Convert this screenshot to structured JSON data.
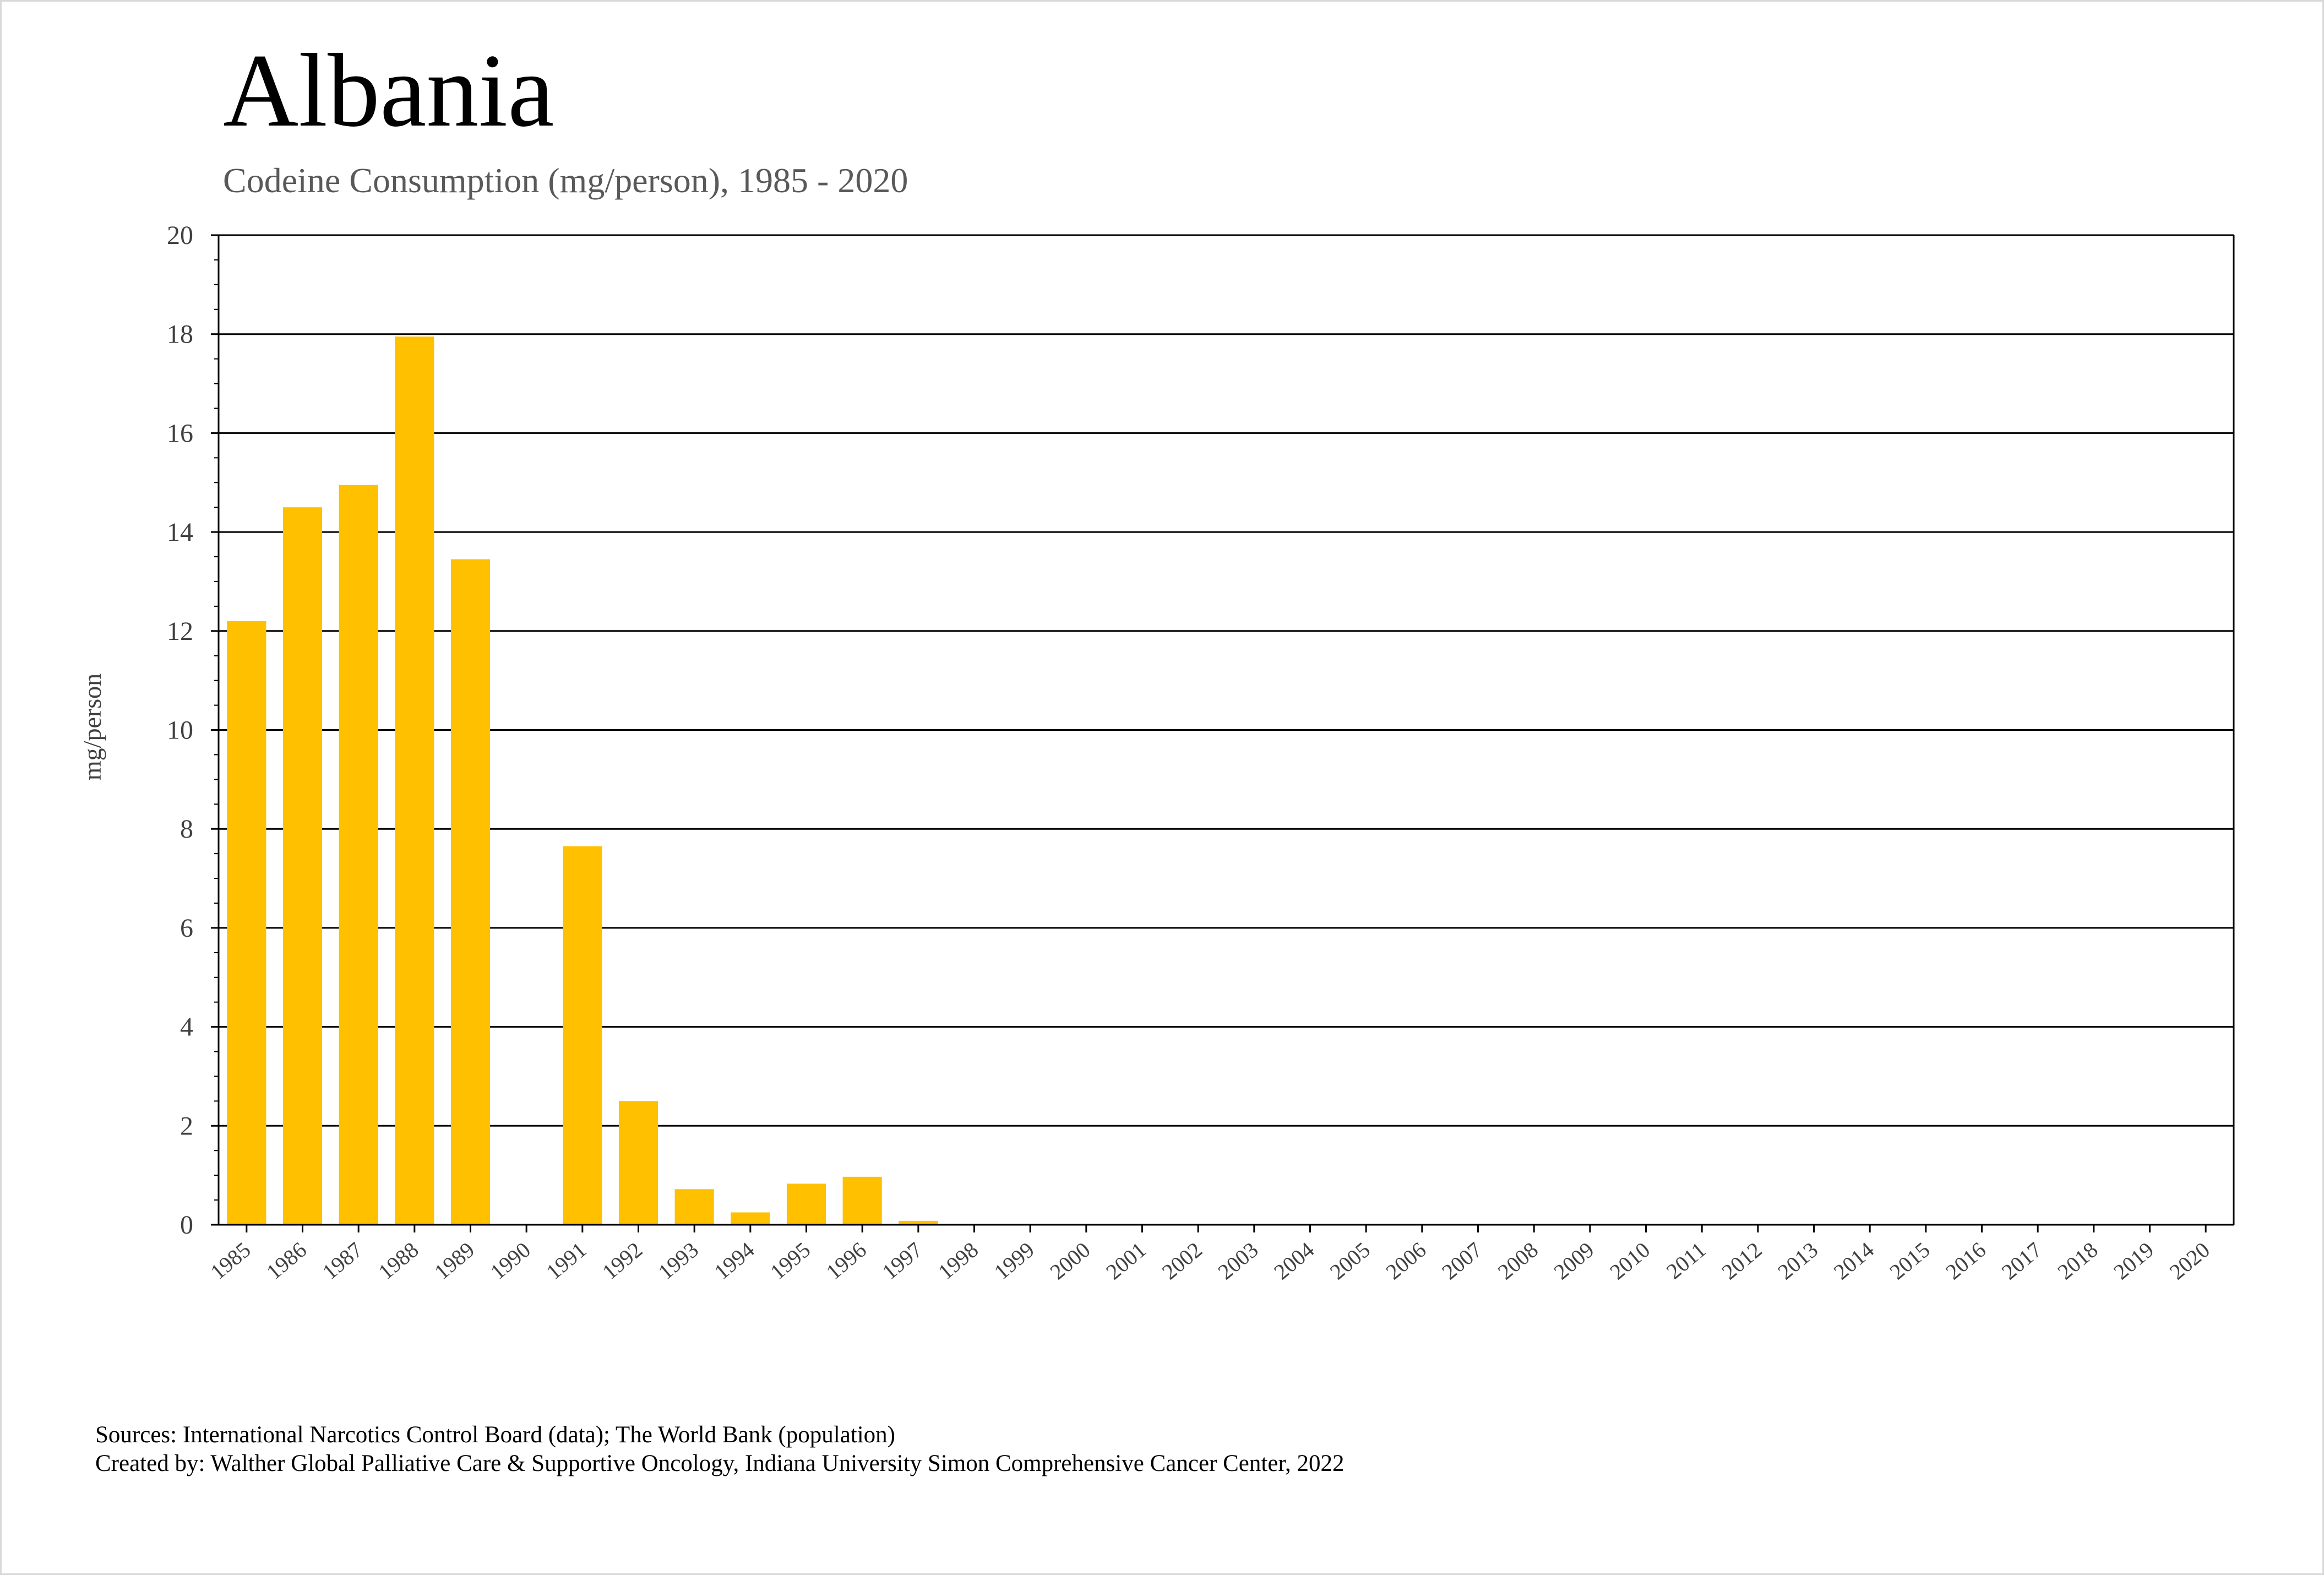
{
  "chart_data": {
    "type": "bar",
    "title": "Albania",
    "subtitle": "Codeine Consumption (mg/person), 1985 - 2020",
    "xlabel": "",
    "ylabel": "mg/person",
    "ylim": [
      0,
      20
    ],
    "yticks": [
      0,
      2,
      4,
      6,
      8,
      10,
      12,
      14,
      16,
      18,
      20
    ],
    "grid": true,
    "bar_color": "#FFC000",
    "categories": [
      "1985",
      "1986",
      "1987",
      "1988",
      "1989",
      "1990",
      "1991",
      "1992",
      "1993",
      "1994",
      "1995",
      "1996",
      "1997",
      "1998",
      "1999",
      "2000",
      "2001",
      "2002",
      "2003",
      "2004",
      "2005",
      "2006",
      "2007",
      "2008",
      "2009",
      "2010",
      "2011",
      "2012",
      "2013",
      "2014",
      "2015",
      "2016",
      "2017",
      "2018",
      "2019",
      "2020"
    ],
    "values": [
      12.2,
      14.5,
      14.95,
      17.95,
      13.45,
      0,
      7.65,
      2.5,
      0.72,
      0.25,
      0.83,
      0.97,
      0.08,
      0,
      0,
      0,
      0,
      0,
      0,
      0,
      0,
      0,
      0,
      0,
      0,
      0,
      0,
      0,
      0,
      0,
      0,
      0,
      0,
      0,
      0,
      0
    ]
  },
  "footer": {
    "sources": "Sources: International Narcotics Control Board (data); The World Bank (population)",
    "created_by": "Created by: Walther Global Palliative Care & Supportive Oncology, Indiana University Simon Comprehensive Cancer Center, 2022"
  }
}
